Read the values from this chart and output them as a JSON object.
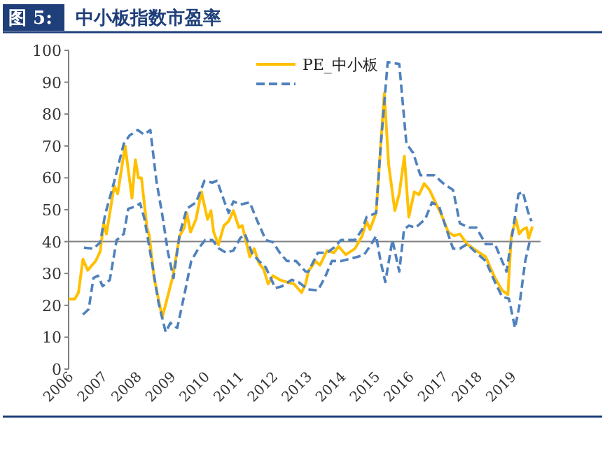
{
  "chart_data": {
    "type": "line",
    "title": "图 5:",
    "subtitle": "中小板指数市盈率",
    "xlim": [
      2006,
      2019.86
    ],
    "xticks": [
      2006,
      2007,
      2008,
      2009,
      2010,
      2011,
      2012,
      2013,
      2014,
      2015,
      2016,
      2017,
      2018,
      2019
    ],
    "ylim": [
      0,
      100
    ],
    "yticks": [
      0,
      10,
      20,
      30,
      40,
      50,
      60,
      70,
      80,
      90,
      100
    ],
    "legend": "top",
    "grid": false,
    "ref_lines": [
      {
        "axis": "y",
        "value": 40,
        "color": "#808080"
      }
    ],
    "series": [
      {
        "name": "PE_中小板",
        "color": "#ffc000",
        "line_style": "solid",
        "x": [
          2006.0,
          2006.18,
          2006.29,
          2006.42,
          2006.56,
          2006.8,
          2006.93,
          2007.03,
          2007.11,
          2007.34,
          2007.44,
          2007.66,
          2007.86,
          2007.96,
          2008.05,
          2008.14,
          2008.3,
          2008.37,
          2008.51,
          2008.75,
          2009.05,
          2009.26,
          2009.4,
          2009.47,
          2009.58,
          2009.74,
          2009.9,
          2010.08,
          2010.18,
          2010.26,
          2010.4,
          2010.56,
          2010.7,
          2010.84,
          2011.0,
          2011.1,
          2011.32,
          2011.45,
          2011.59,
          2011.73,
          2011.86,
          2012.0,
          2012.2,
          2012.41,
          2012.62,
          2012.84,
          2012.96,
          2013.04,
          2013.25,
          2013.38,
          2013.59,
          2013.79,
          2013.93,
          2014.14,
          2014.41,
          2014.62,
          2014.75,
          2014.85,
          2015.03,
          2015.16,
          2015.27,
          2015.4,
          2015.58,
          2015.71,
          2015.86,
          2015.99,
          2016.15,
          2016.29,
          2016.44,
          2016.6,
          2016.74,
          2016.95,
          2017.15,
          2017.32,
          2017.49,
          2017.7,
          2017.97,
          2018.25,
          2018.52,
          2018.73,
          2018.9,
          2019.0,
          2019.14,
          2019.23,
          2019.34,
          2019.45,
          2019.51,
          2019.62
        ],
        "values": [
          22,
          22,
          24,
          34.5,
          31,
          34,
          37,
          45.7,
          42.4,
          57.5,
          55,
          70,
          53.6,
          65.7,
          60,
          60,
          44.4,
          41.8,
          28.6,
          16.2,
          28.6,
          41.8,
          44.4,
          49,
          43,
          47,
          55.6,
          47,
          49.7,
          43,
          39,
          45,
          46.4,
          49.7,
          44.4,
          45,
          35.2,
          37.8,
          33.2,
          31.3,
          26.7,
          29.3,
          28,
          27.3,
          26.7,
          24,
          26.7,
          30.6,
          33.9,
          32.6,
          37.2,
          36.5,
          38.5,
          35.9,
          37.8,
          41.8,
          46.4,
          43.8,
          49,
          69.4,
          86.5,
          64,
          49.7,
          55,
          66.8,
          47.7,
          55.6,
          54.7,
          58.2,
          56.2,
          53,
          48.4,
          43,
          41.8,
          42.4,
          39.2,
          37.2,
          35.2,
          28.6,
          24.7,
          23.4,
          41.8,
          47,
          42.4,
          43.8,
          44.4,
          41.1,
          44.7
        ]
      },
      {
        "color": "#4f81bd",
        "line_style": "dashed",
        "x": [
          2006.45,
          2006.73,
          2006.93,
          2007.07,
          2007.34,
          2007.62,
          2007.79,
          2008.03,
          2008.21,
          2008.4,
          2008.58,
          2008.75,
          2008.92,
          2009.08,
          2009.26,
          2009.47,
          2009.74,
          2009.99,
          2010.22,
          2010.36,
          2010.56,
          2010.7,
          2010.84,
          2011.04,
          2011.32,
          2011.52,
          2011.79,
          2012.0,
          2012.2,
          2012.41,
          2012.68,
          2012.96,
          2013.04,
          2013.32,
          2013.59,
          2013.79,
          2014.0,
          2014.41,
          2014.62,
          2014.75,
          2015.03,
          2015.16,
          2015.37,
          2015.71,
          2015.92,
          2016.12,
          2016.33,
          2016.74,
          2017.01,
          2017.29,
          2017.49,
          2017.77,
          2017.97,
          2018.25,
          2018.52,
          2018.73,
          2018.86,
          2019.03,
          2019.21,
          2019.34,
          2019.48,
          2019.59
        ],
        "values": [
          38.1,
          37.8,
          39.8,
          48.4,
          58.9,
          70.7,
          73.3,
          75,
          73.6,
          75,
          58.9,
          48.4,
          36.5,
          28.6,
          42.4,
          50.3,
          52.3,
          59.1,
          58.5,
          59.1,
          53,
          49,
          52.6,
          51.6,
          52.3,
          47,
          40.5,
          39.8,
          36.5,
          33.9,
          33.9,
          30.6,
          30.6,
          36.5,
          36.5,
          38.1,
          40.5,
          40.5,
          43.8,
          47.7,
          49,
          69.4,
          96.3,
          95.7,
          70.7,
          67.8,
          60.8,
          60.8,
          58.2,
          56.2,
          45.7,
          44.4,
          44.4,
          39.2,
          39.2,
          33.9,
          30.6,
          42.4,
          54.9,
          55.6,
          49.7,
          46.4
        ]
      },
      {
        "color": "#4f81bd",
        "line_style": "dashed",
        "x": [
          2006.42,
          2006.59,
          2006.73,
          2006.86,
          2007.0,
          2007.21,
          2007.41,
          2007.62,
          2007.75,
          2007.96,
          2008.1,
          2008.23,
          2008.44,
          2008.64,
          2008.85,
          2008.99,
          2009.19,
          2009.4,
          2009.6,
          2009.81,
          2010.01,
          2010.22,
          2010.42,
          2010.63,
          2010.84,
          2011.04,
          2011.18,
          2011.38,
          2011.59,
          2011.79,
          2012.07,
          2012.27,
          2012.55,
          2012.75,
          2013.03,
          2013.32,
          2013.52,
          2013.73,
          2014.0,
          2014.27,
          2014.48,
          2014.68,
          2014.89,
          2015.03,
          2015.16,
          2015.3,
          2015.51,
          2015.71,
          2015.85,
          2015.99,
          2016.19,
          2016.47,
          2016.67,
          2016.88,
          2017.08,
          2017.29,
          2017.49,
          2017.7,
          2017.97,
          2018.25,
          2018.52,
          2018.73,
          2018.93,
          2019.11,
          2019.23,
          2019.41,
          2019.55
        ],
        "values": [
          17.1,
          18.8,
          28.6,
          29.3,
          26,
          28,
          40.5,
          42.4,
          50.3,
          51,
          52,
          47,
          33.9,
          20.8,
          11.6,
          14.5,
          12.9,
          23.4,
          33.9,
          37.8,
          40.5,
          40.5,
          37.8,
          36.5,
          37.2,
          41.1,
          42.4,
          36.5,
          33.9,
          31.9,
          25.4,
          26,
          28,
          27.3,
          25,
          24.7,
          28.6,
          33.9,
          33.9,
          34.6,
          35.2,
          35.9,
          39.2,
          41.8,
          33.9,
          27.3,
          40.5,
          30.6,
          43.8,
          45,
          44.4,
          47,
          52.3,
          51,
          44.4,
          37.8,
          37.8,
          39.2,
          36.5,
          33.9,
          27.3,
          22.7,
          22.1,
          12.9,
          19.4,
          33.9,
          40.5
        ]
      }
    ]
  }
}
